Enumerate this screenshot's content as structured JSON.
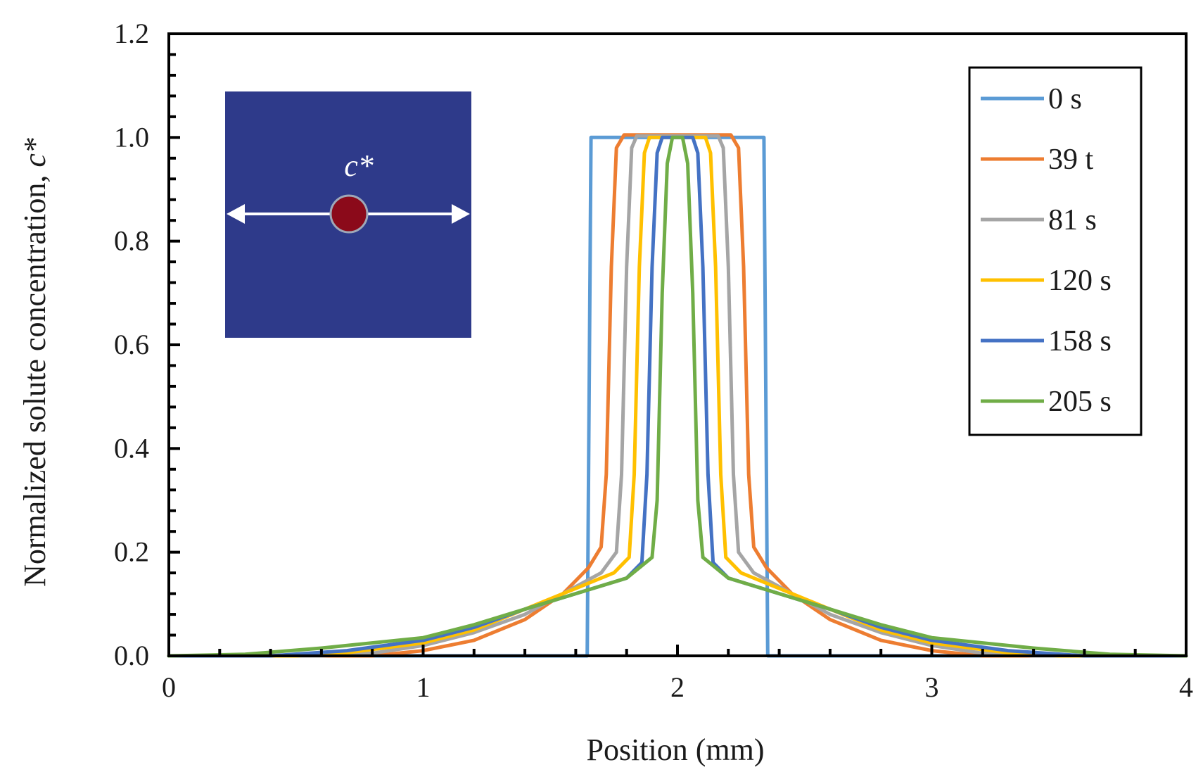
{
  "chart_data": {
    "type": "line",
    "title": "",
    "xlabel": "Position (mm)",
    "ylabel_text": "Normalized solute concentration,",
    "ylabel_symbol": "c*",
    "xlim": [
      0,
      4
    ],
    "ylim": [
      0,
      1.2
    ],
    "x_ticks": [
      0,
      1,
      2,
      3,
      4
    ],
    "x_tick_labels": [
      "0",
      "1",
      "2",
      "3",
      "4"
    ],
    "y_ticks": [
      0,
      0.2,
      0.4,
      0.6,
      0.8,
      1.0,
      1.2
    ],
    "y_tick_labels": [
      "0.0",
      "0.2",
      "0.4",
      "0.6",
      "0.8",
      "1.0",
      "1.2"
    ],
    "grid": false,
    "legend_position": "top-right",
    "inset_label": "c*",
    "series": [
      {
        "name": "0 s",
        "color": "#5B9BD5",
        "x": [
          0,
          1.64,
          1.645,
          1.66,
          1.67,
          2.33,
          2.34,
          2.355,
          2.36,
          4
        ],
        "y": [
          0,
          0,
          0,
          1.0,
          1.0,
          1.0,
          1.0,
          0,
          0,
          0
        ]
      },
      {
        "name": "39 t",
        "color": "#ED7D31",
        "x": [
          0,
          0.8,
          1.0,
          1.2,
          1.4,
          1.55,
          1.65,
          1.7,
          1.72,
          1.74,
          1.76,
          1.79,
          2.21,
          2.24,
          2.26,
          2.28,
          2.3,
          2.35,
          2.45,
          2.6,
          2.8,
          3.0,
          3.2,
          4
        ],
        "y": [
          0,
          0,
          0.01,
          0.03,
          0.07,
          0.12,
          0.17,
          0.21,
          0.35,
          0.75,
          0.98,
          1.005,
          1.005,
          0.98,
          0.75,
          0.35,
          0.21,
          0.17,
          0.12,
          0.07,
          0.03,
          0.01,
          0,
          0
        ]
      },
      {
        "name": "81 s",
        "color": "#A5A5A5",
        "x": [
          0,
          0.6,
          0.8,
          1.0,
          1.2,
          1.4,
          1.55,
          1.7,
          1.76,
          1.78,
          1.8,
          1.82,
          1.84,
          2.16,
          2.18,
          2.2,
          2.22,
          2.24,
          2.3,
          2.45,
          2.6,
          2.8,
          3.0,
          3.2,
          3.4,
          4
        ],
        "y": [
          0,
          0,
          0.005,
          0.02,
          0.045,
          0.08,
          0.12,
          0.16,
          0.2,
          0.35,
          0.75,
          0.98,
          1.003,
          1.003,
          0.98,
          0.75,
          0.35,
          0.2,
          0.16,
          0.12,
          0.08,
          0.045,
          0.02,
          0.005,
          0,
          0
        ]
      },
      {
        "name": "120 s",
        "color": "#FFC000",
        "x": [
          0,
          0.5,
          0.7,
          1.0,
          1.2,
          1.4,
          1.6,
          1.75,
          1.81,
          1.83,
          1.85,
          1.87,
          1.89,
          2.11,
          2.13,
          2.15,
          2.17,
          2.19,
          2.25,
          2.4,
          2.6,
          2.8,
          3.0,
          3.3,
          3.5,
          4
        ],
        "y": [
          0,
          0,
          0.006,
          0.025,
          0.05,
          0.09,
          0.13,
          0.16,
          0.19,
          0.35,
          0.75,
          0.97,
          1.0,
          1.0,
          0.97,
          0.75,
          0.35,
          0.19,
          0.16,
          0.13,
          0.09,
          0.05,
          0.025,
          0.006,
          0,
          0
        ]
      },
      {
        "name": "158 s",
        "color": "#4472C4",
        "x": [
          0,
          0.4,
          0.7,
          1.0,
          1.2,
          1.4,
          1.6,
          1.8,
          1.86,
          1.88,
          1.9,
          1.92,
          1.94,
          2.06,
          2.08,
          2.1,
          2.12,
          2.14,
          2.2,
          2.4,
          2.6,
          2.8,
          3.0,
          3.3,
          3.6,
          4
        ],
        "y": [
          0,
          0,
          0.01,
          0.03,
          0.055,
          0.09,
          0.12,
          0.15,
          0.18,
          0.35,
          0.75,
          0.97,
          1.0,
          1.0,
          0.97,
          0.75,
          0.35,
          0.18,
          0.15,
          0.12,
          0.09,
          0.055,
          0.03,
          0.01,
          0,
          0
        ]
      },
      {
        "name": "205 s",
        "color": "#70AD47",
        "x": [
          0,
          0.3,
          0.6,
          1.0,
          1.2,
          1.4,
          1.6,
          1.8,
          1.9,
          1.92,
          1.94,
          1.96,
          1.98,
          2.0,
          2.02,
          2.04,
          2.06,
          2.08,
          2.1,
          2.2,
          2.4,
          2.6,
          2.8,
          3.0,
          3.4,
          3.7,
          4
        ],
        "y": [
          0,
          0.003,
          0.015,
          0.035,
          0.06,
          0.09,
          0.12,
          0.15,
          0.19,
          0.3,
          0.7,
          0.95,
          1.0,
          1.0,
          1.0,
          0.95,
          0.7,
          0.3,
          0.19,
          0.15,
          0.12,
          0.09,
          0.06,
          0.035,
          0.015,
          0.003,
          0
        ]
      }
    ]
  }
}
